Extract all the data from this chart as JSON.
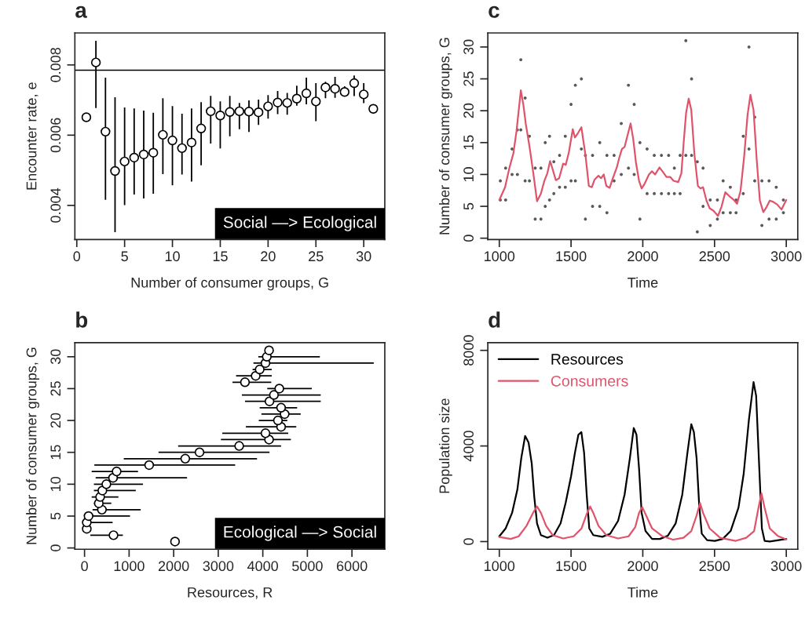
{
  "chart_data": [
    {
      "type": "scatter",
      "title": "a",
      "xlabel": "Number of consumer groups, G",
      "ylabel": "Encounter rate, e",
      "marker": "circle",
      "xlim": [
        -0.2,
        32.2
      ],
      "xticks": [
        0,
        5,
        10,
        15,
        20,
        25,
        30
      ],
      "ylim": [
        0.00303,
        0.00891
      ],
      "yticks": [
        0.004,
        0.006,
        0.008
      ],
      "ref_lines": [
        {
          "axis": "y",
          "value": 0.00785,
          "color": "#000000"
        }
      ],
      "annotations": [
        "Social —> Ecological"
      ],
      "series": [
        {
          "color": "#000000",
          "x": [
            1,
            2,
            3,
            4,
            5,
            6,
            7,
            8,
            9,
            10,
            11,
            12,
            13,
            14,
            15,
            16,
            17,
            18,
            19,
            20,
            21,
            22,
            23,
            24,
            25,
            26,
            27,
            28,
            29,
            30,
            31
          ],
          "values": [
            0.00651,
            0.00807,
            0.0061,
            0.00498,
            0.00525,
            0.00536,
            0.00545,
            0.0055,
            0.00601,
            0.00585,
            0.00563,
            0.00579,
            0.00619,
            0.00668,
            0.00656,
            0.00666,
            0.00668,
            0.00667,
            0.00665,
            0.00682,
            0.00693,
            0.00692,
            0.00704,
            0.00719,
            0.00696,
            0.00736,
            0.00732,
            0.00723,
            0.00748,
            0.00716,
            0.00675
          ],
          "errors": [
            null,
            [
              0.00677,
              0.00869
            ],
            [
              0.00416,
              0.00764
            ],
            [
              0.00324,
              0.00708
            ],
            [
              0.00401,
              0.00679
            ],
            [
              0.00431,
              0.00676
            ],
            [
              0.0042,
              0.0067
            ],
            [
              0.00433,
              0.00664
            ],
            [
              0.00489,
              0.00705
            ],
            [
              0.00457,
              0.00683
            ],
            [
              0.00488,
              0.00661
            ],
            [
              0.00468,
              0.00676
            ],
            [
              0.00514,
              0.00694
            ],
            [
              0.00576,
              0.00712
            ],
            [
              0.00562,
              0.00696
            ],
            [
              0.00597,
              0.00712
            ],
            [
              0.00617,
              0.00692
            ],
            [
              0.00609,
              0.00699
            ],
            [
              0.00629,
              0.00701
            ],
            [
              0.00647,
              0.00714
            ],
            [
              0.0066,
              0.00726
            ],
            [
              0.00658,
              0.0072
            ],
            [
              0.00684,
              0.00741
            ],
            [
              0.00688,
              0.00764
            ],
            [
              0.0064,
              0.00748
            ],
            [
              0.00705,
              0.00752
            ],
            [
              0.00706,
              0.00766
            ],
            [
              0.00711,
              0.00739
            ],
            [
              0.00711,
              0.0077
            ],
            [
              0.00691,
              0.00748
            ],
            null
          ]
        }
      ]
    },
    {
      "type": "scatter",
      "title": "b",
      "xlabel": "Resources, R",
      "ylabel": "Number of consumer groups, G",
      "marker": "circle",
      "xlim": [
        -217,
        6737
      ],
      "xticks": [
        0,
        1000,
        2000,
        3000,
        4000,
        5000,
        6000
      ],
      "ylim": [
        -0.2,
        32.2
      ],
      "yticks": [
        0,
        5,
        10,
        15,
        20,
        25,
        30
      ],
      "annotations": [
        "Ecological —> Social"
      ],
      "series": [
        {
          "color": "#000000",
          "x": [
            2030,
            650,
            50,
            50,
            90,
            390,
            320,
            350,
            400,
            490,
            640,
            720,
            1450,
            2260,
            2580,
            3470,
            4140,
            4060,
            4410,
            4340,
            4490,
            4410,
            4150,
            4250,
            4370,
            3600,
            3840,
            3930,
            4060,
            4090,
            4140
          ],
          "values": [
            1,
            2,
            3,
            4,
            5,
            6,
            7,
            8,
            9,
            10,
            11,
            12,
            13,
            14,
            15,
            16,
            17,
            18,
            19,
            20,
            21,
            22,
            23,
            24,
            25,
            26,
            27,
            28,
            29,
            30,
            31
          ],
          "xerrors": [
            null,
            [
              130,
              860
            ],
            null,
            [
              30,
              630
            ],
            [
              80,
              1020
            ],
            [
              180,
              1260
            ],
            [
              210,
              600
            ],
            [
              160,
              760
            ],
            [
              210,
              1150
            ],
            [
              210,
              1310
            ],
            [
              250,
              2300
            ],
            [
              160,
              1200
            ],
            [
              220,
              3380
            ],
            [
              880,
              3870
            ],
            [
              1660,
              4150
            ],
            [
              2100,
              4410
            ],
            [
              3060,
              4630
            ],
            [
              3090,
              4570
            ],
            [
              3620,
              4750
            ],
            [
              3910,
              4550
            ],
            [
              3970,
              4850
            ],
            [
              3930,
              4770
            ],
            [
              3600,
              5300
            ],
            [
              3530,
              5300
            ],
            [
              4100,
              5100
            ],
            [
              3320,
              4190
            ],
            [
              3400,
              4200
            ],
            [
              3770,
              4200
            ],
            [
              3790,
              6490
            ],
            [
              3900,
              5280
            ],
            null
          ]
        }
      ]
    },
    {
      "type": "scatter",
      "title": "c",
      "xlabel": "Time",
      "ylabel": "Number of consumer groups, G",
      "xlim": [
        920,
        3080
      ],
      "xticks": [
        1000,
        1500,
        2000,
        2500,
        3000
      ],
      "ylim": [
        -0.2,
        32.2
      ],
      "yticks": [
        0,
        5,
        10,
        15,
        20,
        25,
        30
      ],
      "series": [
        {
          "color": "#595959",
          "marker": "circle",
          "x": [
            1007,
            1007,
            1044,
            1044,
            1089,
            1089,
            1126,
            1126,
            1150,
            1150,
            1180,
            1180,
            1210,
            1210,
            1250,
            1250,
            1290,
            1290,
            1320,
            1320,
            1350,
            1350,
            1380,
            1380,
            1420,
            1420,
            1460,
            1460,
            1500,
            1500,
            1530,
            1530,
            1572,
            1572,
            1600,
            1600,
            1650,
            1650,
            1700,
            1700,
            1750,
            1750,
            1800,
            1800,
            1850,
            1850,
            1900,
            1900,
            1940,
            1940,
            1980,
            1980,
            2030,
            2030,
            2080,
            2080,
            2130,
            2130,
            2180,
            2180,
            2220,
            2220,
            2260,
            2260,
            2300,
            2300,
            2340,
            2340,
            2380,
            2380,
            2420,
            2420,
            2470,
            2470,
            2520,
            2520,
            2560,
            2560,
            2610,
            2610,
            2650,
            2650,
            2700,
            2700,
            2740,
            2740,
            2780,
            2780,
            2830,
            2830,
            2880,
            2880,
            2930,
            2930,
            2980,
            2980
          ],
          "values": [
            6,
            9,
            6,
            11,
            10,
            14,
            10,
            17,
            17,
            28,
            9,
            22,
            9,
            16,
            3,
            11,
            3,
            11,
            5,
            15,
            6,
            16,
            7,
            12,
            8,
            13,
            8,
            16,
            9,
            21,
            9,
            24,
            14,
            25,
            3,
            13,
            5,
            13,
            5,
            15,
            4,
            13,
            9,
            13,
            10,
            18,
            11,
            24,
            10,
            21,
            3,
            15,
            7,
            14,
            7,
            13,
            7,
            13,
            7,
            13,
            7,
            11,
            7,
            13,
            13,
            31,
            13,
            25,
            1,
            12,
            5,
            11,
            2,
            6,
            3,
            6,
            4,
            9,
            4,
            8,
            4,
            6,
            7,
            16,
            14,
            30,
            9,
            19,
            2,
            9,
            3,
            9,
            3,
            8,
            4,
            6
          ]
        },
        {
          "type": "line",
          "color": "#df536b",
          "marker": "none",
          "x": [
            1000,
            1040,
            1071,
            1098,
            1120,
            1150,
            1168,
            1184,
            1211,
            1237,
            1263,
            1290,
            1314,
            1335,
            1354,
            1368,
            1394,
            1417,
            1445,
            1463,
            1485,
            1512,
            1527,
            1551,
            1572,
            1600,
            1624,
            1645,
            1664,
            1691,
            1709,
            1728,
            1746,
            1769,
            1791,
            1819,
            1837,
            1855,
            1873,
            1892,
            1915,
            1933,
            1952,
            1974,
            1992,
            2014,
            2043,
            2064,
            2086,
            2116,
            2137,
            2165,
            2192,
            2214,
            2247,
            2269,
            2287,
            2302,
            2320,
            2338,
            2360,
            2384,
            2402,
            2420,
            2444,
            2466,
            2493,
            2524,
            2548,
            2575,
            2603,
            2630,
            2657,
            2681,
            2706,
            2730,
            2750,
            2772,
            2794,
            2816,
            2840,
            2863,
            2885,
            2909,
            2936,
            2967,
            3000
          ],
          "values": [
            6.0,
            8.0,
            11.1,
            13.3,
            16.8,
            23.2,
            20.9,
            18.0,
            14.3,
            10.2,
            5.8,
            7.0,
            9.0,
            10.2,
            12.1,
            11.1,
            9.1,
            9.4,
            11.7,
            11.5,
            13.5,
            17.1,
            15.8,
            16.6,
            17.4,
            13.1,
            8.2,
            8.0,
            9.2,
            9.8,
            9.4,
            10.0,
            8.2,
            7.9,
            9.4,
            11.1,
            12.7,
            14.0,
            14.3,
            16.0,
            18.0,
            15.6,
            11.9,
            9.0,
            7.8,
            8.6,
            10.0,
            10.5,
            10.0,
            11.1,
            10.5,
            9.6,
            9.6,
            9.0,
            8.8,
            10.2,
            15.6,
            19.7,
            21.9,
            20.1,
            13.1,
            8.2,
            7.8,
            8.0,
            5.9,
            4.7,
            4.3,
            3.5,
            4.9,
            7.2,
            6.6,
            6.1,
            5.4,
            7.4,
            12.7,
            19.3,
            22.5,
            20.1,
            12.3,
            5.9,
            4.1,
            4.9,
            5.9,
            5.7,
            5.3,
            4.5,
            6.0
          ]
        }
      ]
    },
    {
      "type": "line",
      "title": "d",
      "xlabel": "Time",
      "ylabel": "Population size",
      "legend": "top left",
      "xlim": [
        920,
        3080
      ],
      "xticks": [
        1000,
        1500,
        2000,
        2500,
        3000
      ],
      "ylim": [
        -320,
        8320
      ],
      "yticks": [
        0,
        4000,
        8000
      ],
      "series": [
        {
          "name": "Resources",
          "color": "#000000",
          "x": [
            1000,
            1044,
            1089,
            1126,
            1153,
            1180,
            1204,
            1226,
            1244,
            1263,
            1290,
            1335,
            1381,
            1427,
            1463,
            1500,
            1527,
            1551,
            1572,
            1591,
            1609,
            1627,
            1655,
            1718,
            1773,
            1828,
            1873,
            1910,
            1937,
            1956,
            1974,
            1992,
            2019,
            2065,
            2119,
            2174,
            2229,
            2275,
            2311,
            2338,
            2356,
            2375,
            2393,
            2411,
            2448,
            2502,
            2557,
            2612,
            2667,
            2703,
            2740,
            2772,
            2790,
            2812,
            2830,
            2849,
            2885,
            3000
          ],
          "values": [
            220,
            550,
            1200,
            2180,
            3490,
            4420,
            4140,
            3270,
            1850,
            760,
            270,
            160,
            270,
            760,
            1640,
            2730,
            3710,
            4470,
            4580,
            3710,
            1960,
            550,
            270,
            200,
            330,
            870,
            1960,
            3490,
            4750,
            4470,
            3050,
            1200,
            440,
            110,
            110,
            240,
            760,
            1960,
            3710,
            4910,
            4580,
            3490,
            1530,
            330,
            60,
            30,
            110,
            440,
            1420,
            2830,
            5120,
            6670,
            6100,
            3050,
            550,
            30,
            0,
            110
          ]
        },
        {
          "name": "Consumers",
          "color": "#df536b",
          "x": [
            1000,
            1080,
            1135,
            1190,
            1235,
            1263,
            1290,
            1326,
            1372,
            1445,
            1518,
            1573,
            1609,
            1633,
            1655,
            1691,
            1746,
            1828,
            1901,
            1947,
            1974,
            1996,
            2019,
            2065,
            2138,
            2211,
            2284,
            2338,
            2375,
            2399,
            2420,
            2466,
            2539,
            2648,
            2721,
            2776,
            2803,
            2827,
            2849,
            2885,
            2940,
            3000
          ],
          "values": [
            190,
            110,
            220,
            660,
            1200,
            1470,
            1200,
            660,
            270,
            130,
            220,
            550,
            1150,
            1470,
            1200,
            660,
            270,
            130,
            220,
            600,
            1200,
            1440,
            1150,
            550,
            220,
            80,
            160,
            440,
            1090,
            1610,
            1200,
            550,
            160,
            30,
            160,
            440,
            1310,
            2020,
            1420,
            550,
            240,
            90
          ]
        }
      ]
    }
  ]
}
